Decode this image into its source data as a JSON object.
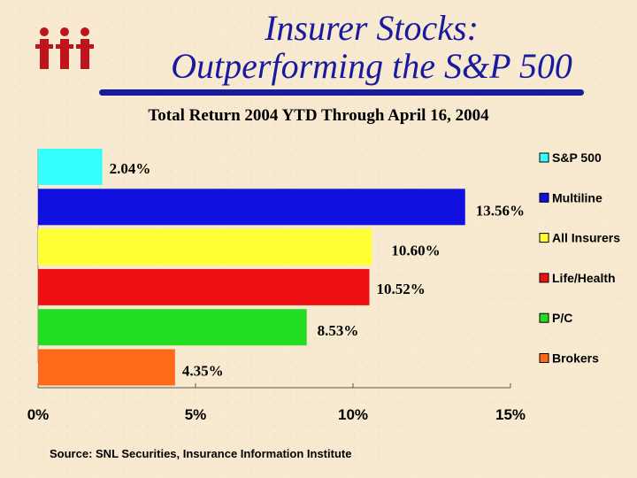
{
  "slide": {
    "title_line1": "Insurer Stocks:",
    "title_line2": "Outperforming the S&P 500",
    "source": "Source: SNL Securities, Insurance Information Institute",
    "logo_text": "iii"
  },
  "chart_data": {
    "type": "bar",
    "orientation": "horizontal",
    "title": "Total Return 2004 YTD Through April 16, 2004",
    "categories": [
      "S&P 500",
      "Multiline",
      "All Insurers",
      "Life/Health",
      "P/C",
      "Brokers"
    ],
    "values": [
      2.04,
      13.56,
      10.6,
      10.52,
      8.53,
      4.35
    ],
    "value_labels": [
      "2.04%",
      "13.56%",
      "10.60%",
      "10.52%",
      "8.53%",
      "4.35%"
    ],
    "colors": [
      "#33ffff",
      "#1010e0",
      "#ffff33",
      "#ee1111",
      "#22dd22",
      "#ff6a1a"
    ],
    "xlim": [
      0,
      15
    ],
    "xticks": [
      0,
      5,
      10,
      15
    ],
    "xtick_labels": [
      "0%",
      "5%",
      "10%",
      "15%"
    ],
    "xlabel": "",
    "ylabel": "",
    "legend": "right"
  }
}
